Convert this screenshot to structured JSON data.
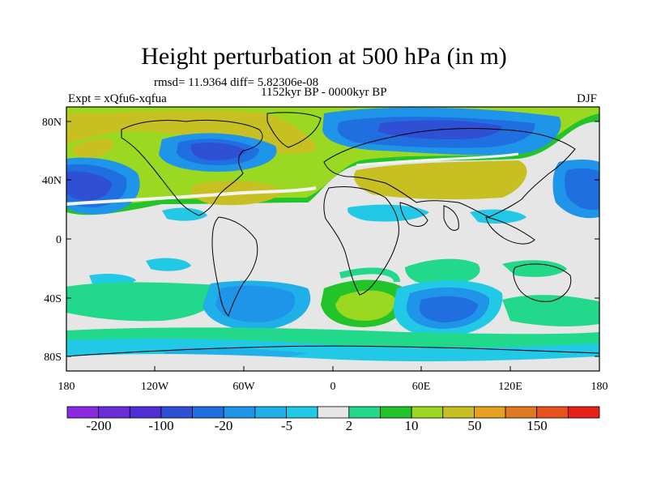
{
  "title": "Height perturbation at 500 hPa (in m)",
  "stats": "rmsd= 11.9364 diff= 5.82306e-08",
  "period": "1152kyr BP - 0000kyr BP",
  "experiment": "Expt = xQfu6-xqfua",
  "season": "DJF",
  "lat_ticks": [
    "80N",
    "40N",
    "0",
    "40S",
    "80S"
  ],
  "lon_ticks": [
    "180",
    "120W",
    "60W",
    "0",
    "60E",
    "120E",
    "180"
  ],
  "colorbar": {
    "colors": [
      "#8a2be2",
      "#6a2bd8",
      "#4f2fd4",
      "#2f4fd4",
      "#1f6fe0",
      "#1f95ea",
      "#1fb0ea",
      "#22c9e6",
      "#e6e6e6",
      "#22d88a",
      "#22c42a",
      "#9ad822",
      "#c8c022",
      "#e6a022",
      "#e07a22",
      "#e8521f",
      "#e8201c"
    ],
    "labels": [
      "-200",
      "-100",
      "-20",
      "-5",
      "2",
      "10",
      "50",
      "150"
    ]
  }
}
